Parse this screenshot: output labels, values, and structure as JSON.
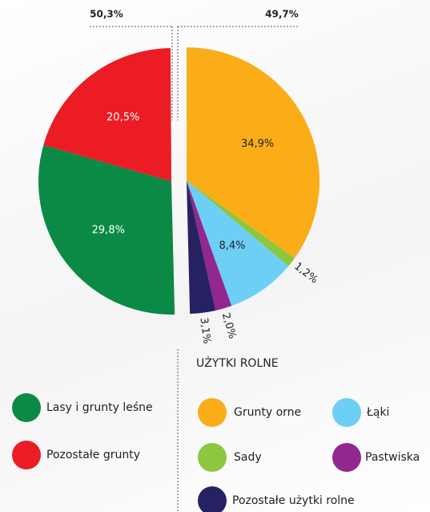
{
  "chart_data": {
    "type": "pie",
    "series": [
      {
        "total": 50.3,
        "total_label": "50,3%",
        "categories": [
          "Lasy i grunty leśne",
          "Pozostałe grunty"
        ],
        "values": [
          29.8,
          20.5
        ],
        "value_labels": [
          "29,8%",
          "20,5%"
        ],
        "colors": [
          "#0a8a44",
          "#ec1c24"
        ]
      },
      {
        "name": "UŻYTKI ROLNE",
        "total": 49.7,
        "total_label": "49,7%",
        "categories": [
          "Grunty orne",
          "Sady",
          "Łąki",
          "Pastwiska",
          "Pozostałe użytki rolne"
        ],
        "values": [
          34.9,
          1.2,
          8.4,
          2.0,
          3.1
        ],
        "value_labels": [
          "34,9%",
          "1,2%",
          "8,4%",
          "2,0%",
          "3,1%"
        ],
        "colors": [
          "#fbad18",
          "#8dc63f",
          "#6dcff6",
          "#92278f",
          "#262262"
        ]
      }
    ]
  }
}
